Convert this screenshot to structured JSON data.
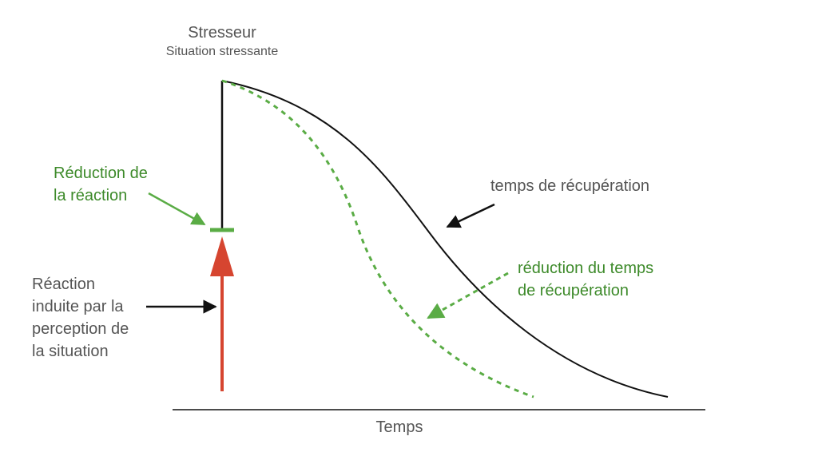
{
  "stressor": {
    "title": "Stresseur",
    "subtitle": "Situation stressante"
  },
  "labels": {
    "reduction_reaction": [
      "Réduction de",
      "la réaction"
    ],
    "induced_reaction": [
      "Réaction",
      "induite par la",
      "perception de",
      "la situation"
    ],
    "recovery_time": "temps de récupération",
    "reduced_recovery": [
      "réduction du temps",
      "de récupération"
    ],
    "x_axis": "Temps"
  },
  "colors": {
    "curve": "#111111",
    "reduced_curve": "#5aac45",
    "reaction_arrow": "#d64530",
    "green_text": "#3d8a2a",
    "gray_text": "#555555",
    "axis": "#111111"
  },
  "icons": {
    "reaction-arrow": "red upward arrow",
    "pointer-arrows": "arrow"
  }
}
